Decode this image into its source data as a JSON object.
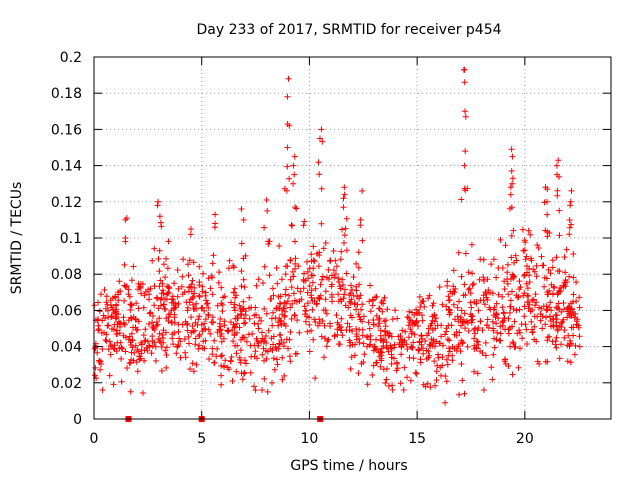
{
  "chart_data": {
    "type": "scatter",
    "title": "Day 233 of 2017, SRMTID for receiver p454",
    "xlabel": "GPS time / hours",
    "ylabel": "SRMTID / TECUs",
    "xlim": [
      0,
      24
    ],
    "ylim": [
      0,
      0.2
    ],
    "xticks": [
      0,
      5,
      10,
      15,
      20
    ],
    "yticks": [
      0,
      0.02,
      0.04,
      0.06,
      0.08,
      0.1,
      0.12,
      0.14,
      0.16,
      0.18,
      0.2
    ],
    "grid": true,
    "marker": "+",
    "color": "#ff0000",
    "baseline_markers_x": [
      1.6,
      5.0,
      10.5
    ],
    "envelope": {
      "description": "approximate per-hour central value and spread of the dense point cloud",
      "hours": [
        0,
        1,
        2,
        3,
        4,
        5,
        6,
        7,
        8,
        9,
        10,
        11,
        12,
        13,
        14,
        15,
        16,
        17,
        18,
        19,
        20,
        21,
        22,
        22.6
      ],
      "center": [
        0.048,
        0.05,
        0.048,
        0.055,
        0.058,
        0.055,
        0.052,
        0.05,
        0.045,
        0.065,
        0.068,
        0.065,
        0.06,
        0.045,
        0.04,
        0.048,
        0.045,
        0.058,
        0.06,
        0.062,
        0.072,
        0.065,
        0.06,
        0.05
      ],
      "spread": [
        0.015,
        0.015,
        0.018,
        0.02,
        0.018,
        0.018,
        0.018,
        0.02,
        0.018,
        0.025,
        0.022,
        0.022,
        0.02,
        0.015,
        0.012,
        0.015,
        0.015,
        0.025,
        0.022,
        0.022,
        0.02,
        0.02,
        0.02,
        0.012
      ]
    },
    "spikes": [
      {
        "x": 1.5,
        "values": [
          0.111,
          0.11,
          0.1,
          0.098
        ]
      },
      {
        "x": 3.0,
        "values": [
          0.12,
          0.118,
          0.112
        ]
      },
      {
        "x": 9.0,
        "values": [
          0.188,
          0.178,
          0.163,
          0.162,
          0.15
        ]
      },
      {
        "x": 9.3,
        "values": [
          0.145,
          0.14,
          0.135,
          0.13
        ]
      },
      {
        "x": 10.5,
        "values": [
          0.16,
          0.155
        ]
      },
      {
        "x": 11.6,
        "values": [
          0.128,
          0.124,
          0.122,
          0.117
        ]
      },
      {
        "x": 12.4,
        "values": [
          0.126,
          0.11
        ]
      },
      {
        "x": 17.2,
        "values": [
          0.193,
          0.193,
          0.186,
          0.17,
          0.167,
          0.148,
          0.14
        ]
      },
      {
        "x": 19.4,
        "values": [
          0.149,
          0.145,
          0.137,
          0.133,
          0.13,
          0.128,
          0.124
        ]
      },
      {
        "x": 21.5,
        "values": [
          0.143,
          0.14,
          0.135
        ]
      },
      {
        "x": 21.0,
        "values": [
          0.128,
          0.127,
          0.12
        ]
      },
      {
        "x": 22.1,
        "values": [
          0.126,
          0.12,
          0.118
        ]
      },
      {
        "x": 4.5,
        "values": [
          0.105,
          0.102
        ]
      },
      {
        "x": 5.6,
        "values": [
          0.113,
          0.108
        ]
      },
      {
        "x": 6.9,
        "values": [
          0.116,
          0.11
        ]
      },
      {
        "x": 8.0,
        "values": [
          0.121,
          0.115
        ]
      }
    ],
    "outliers_low": [
      {
        "x": 0.4,
        "y": 0.016
      },
      {
        "x": 7.8,
        "y": 0.016
      },
      {
        "x": 16.3,
        "y": 0.009
      },
      {
        "x": 17.2,
        "y": 0.014
      },
      {
        "x": 18.1,
        "y": 0.016
      }
    ]
  }
}
